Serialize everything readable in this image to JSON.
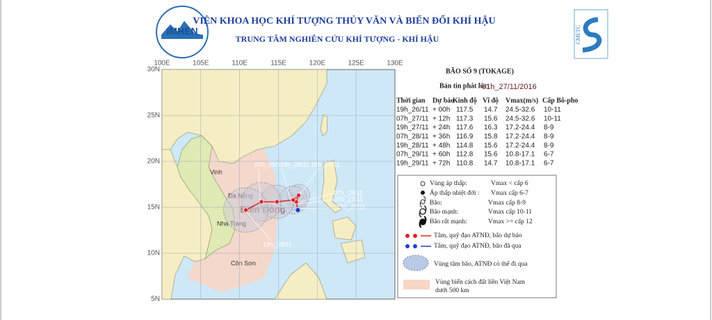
{
  "header": {
    "logo_left": "IMHEN",
    "title": "VIỆN KHOA HỌC KHÍ TƯỢNG THỦY VĂN VÀ BIẾN ĐỔI KHÍ HẬU",
    "subtitle": "TRUNG TÂM NGHIÊN CỨU KHÍ TƯỢNG - KHÍ HẬU",
    "logo_right": "CMETC"
  },
  "map": {
    "lon_labels": [
      "100E",
      "105E",
      "110E",
      "115E",
      "120E",
      "125E",
      "130E"
    ],
    "lat_labels": [
      "30N",
      "25N",
      "20N",
      "15N",
      "10N",
      "5N"
    ],
    "sea_label": "Biển Đông",
    "places": [
      "Đà Nẵng",
      "Vinh",
      "Nha Trang",
      "Côn Sơn"
    ],
    "track_labels": [
      "07h_29/11",
      "19h_28/11",
      "19h_27/11",
      "07h_28/11",
      "07h_27/11",
      "19h_26/11",
      "19h_29/11"
    ]
  },
  "bulletin": {
    "title": "BÃO SỐ 9 (TOKAGE)",
    "issued_label": "Bản tin phát lúc:",
    "issued_time": "01h_27/11/2016",
    "columns": [
      "Thời gian",
      "Dự báo",
      "Kinh độ",
      "Vĩ độ",
      "Vmax(m/s)",
      "Cấp Bô-pho"
    ],
    "rows": [
      [
        "19h_26/11",
        "+ 00h",
        117.5,
        14.7,
        "24.5-32.6",
        "10-11"
      ],
      [
        "07h_27/11",
        "+ 12h",
        117.3,
        15.6,
        "24.5-32.6",
        "10-11"
      ],
      [
        "19h_27/11",
        "+ 24h",
        117.6,
        16.3,
        "17.2-24.4",
        "8-9"
      ],
      [
        "07h_28/11",
        "+ 36h",
        116.9,
        15.8,
        "17.2-24.4",
        "8-9"
      ],
      [
        "19h_28/11",
        "+ 48h",
        114.8,
        15.6,
        "17.2-24.4",
        "8-9"
      ],
      [
        "07h_29/11",
        "+ 60h",
        112.8,
        15.6,
        "10.8-17.1",
        "6-7"
      ],
      [
        "19h_29/11",
        "+ 72h",
        110.8,
        14.7,
        "10.8-17.1",
        "6-7"
      ]
    ]
  },
  "legend": {
    "items": [
      [
        "Vùng áp thấp:",
        "Vmax < cấp 6"
      ],
      [
        "Áp thấp nhiệt đới :",
        "Vmax cấp 6-7"
      ],
      [
        "Bão:",
        "Vmax cấp 8-9"
      ],
      [
        "Bão mạnh:",
        "Vmax cấp 10-11"
      ],
      [
        "Bão rất mạnh:",
        "Vmax >= cấp 12"
      ]
    ],
    "forecast_track": "Tâm, quỹ đạo ATNĐ, bão dự báo",
    "past_track": "Tâm, quỹ đạo ATNĐ, bão đã qua",
    "cone": "Vùng tâm bão, ATNĐ có thể đi qua",
    "zone_line1": "Vùng biển cách đất liền Việt Nam",
    "zone_line2": "dưới 500 km"
  }
}
